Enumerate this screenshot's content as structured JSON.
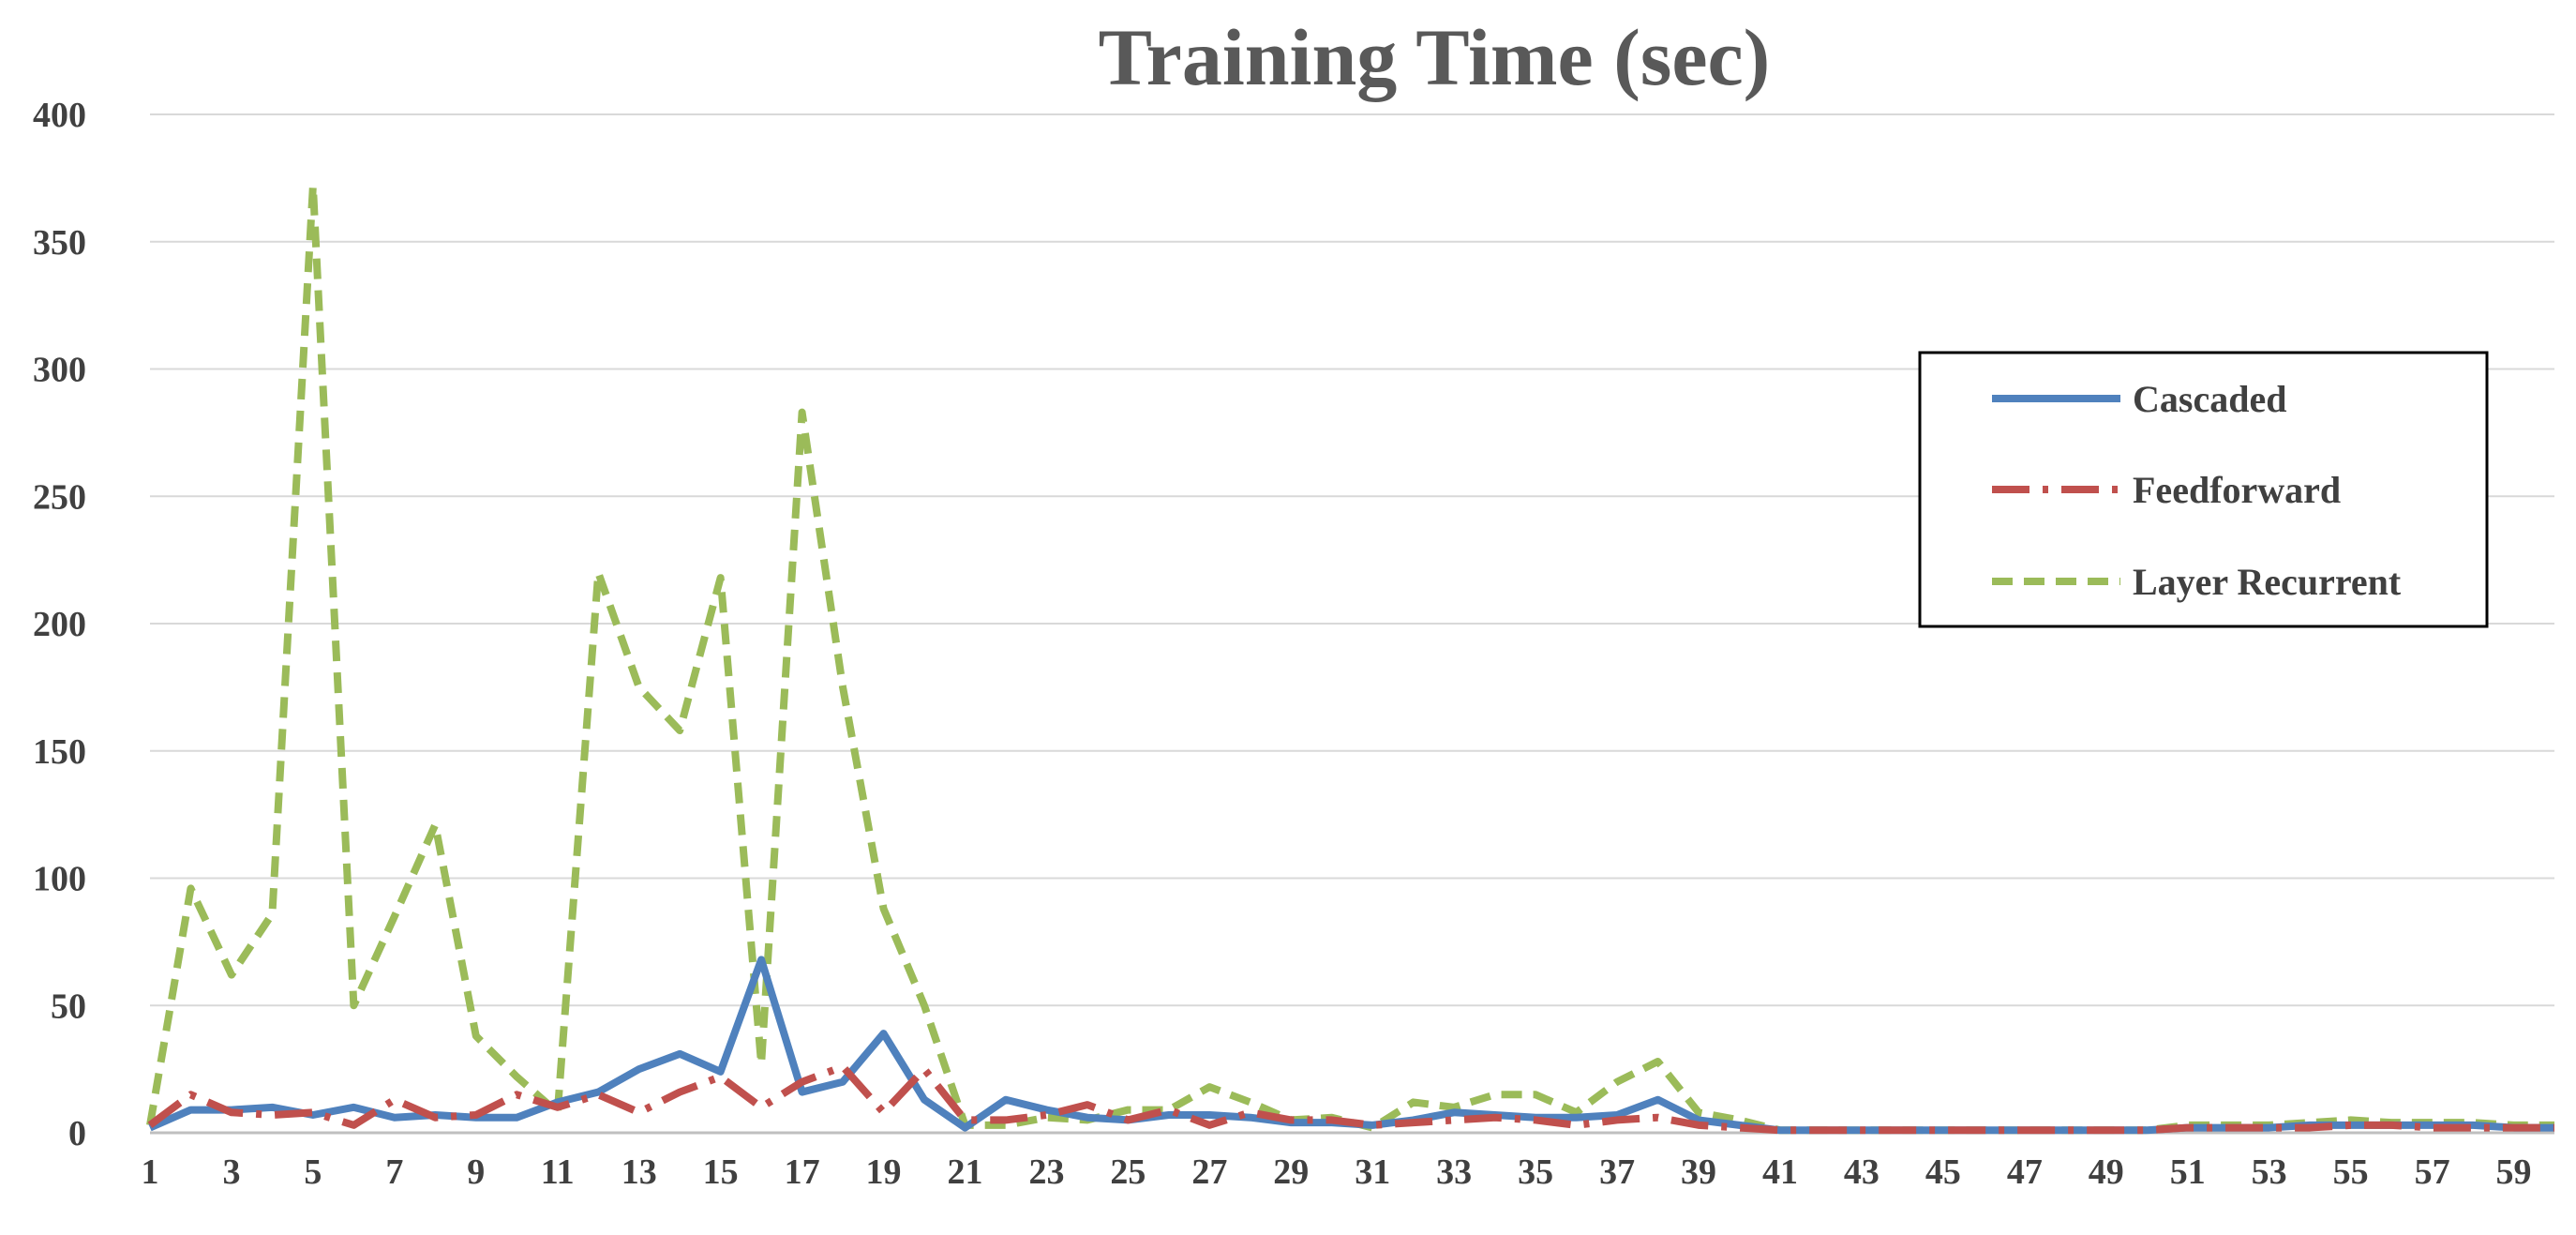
{
  "chart_data": {
    "type": "line",
    "title": "Training Time (sec)",
    "xlabel": "",
    "ylabel": "",
    "x": [
      1,
      2,
      3,
      4,
      5,
      6,
      7,
      8,
      9,
      10,
      11,
      12,
      13,
      14,
      15,
      16,
      17,
      18,
      19,
      20,
      21,
      22,
      23,
      24,
      25,
      26,
      27,
      28,
      29,
      30,
      31,
      32,
      33,
      34,
      35,
      36,
      37,
      38,
      39,
      40,
      41,
      42,
      43,
      44,
      45,
      46,
      47,
      48,
      49,
      50,
      51,
      52,
      53,
      54,
      55,
      56,
      57,
      58,
      59,
      60
    ],
    "x_tick_labels": [
      "1",
      "3",
      "5",
      "7",
      "9",
      "11",
      "13",
      "15",
      "17",
      "19",
      "21",
      "23",
      "25",
      "27",
      "29",
      "31",
      "33",
      "35",
      "37",
      "39",
      "41",
      "43",
      "45",
      "47",
      "49",
      "51",
      "53",
      "55",
      "57",
      "59"
    ],
    "ylim": [
      0,
      400
    ],
    "y_ticks": [
      0,
      50,
      100,
      150,
      200,
      250,
      300,
      350,
      400
    ],
    "grid": true,
    "legend_position": "right",
    "series": [
      {
        "name": "Cascaded",
        "color": "#4F81BD",
        "style": "solid",
        "values": [
          2,
          9,
          9,
          10,
          7,
          10,
          6,
          7,
          6,
          6,
          12,
          16,
          25,
          31,
          24,
          68,
          16,
          20,
          39,
          13,
          2,
          13,
          9,
          6,
          5,
          7,
          7,
          6,
          4,
          4,
          3,
          5,
          8,
          7,
          6,
          6,
          7,
          13,
          5,
          3,
          1,
          1,
          1,
          1,
          1,
          1,
          1,
          1,
          1,
          1,
          2,
          2,
          2,
          3,
          3,
          3,
          3,
          3,
          2,
          2
        ]
      },
      {
        "name": "Feedforward",
        "color": "#C0504D",
        "style": "dashdot",
        "values": [
          3,
          15,
          8,
          7,
          8,
          3,
          13,
          6,
          7,
          15,
          10,
          15,
          8,
          16,
          22,
          10,
          20,
          26,
          8,
          25,
          5,
          5,
          7,
          11,
          5,
          9,
          3,
          8,
          5,
          5,
          3,
          4,
          5,
          6,
          5,
          3,
          5,
          6,
          3,
          2,
          1,
          1,
          1,
          1,
          1,
          1,
          1,
          1,
          1,
          1,
          2,
          2,
          2,
          2,
          3,
          3,
          2,
          2,
          2,
          2
        ]
      },
      {
        "name": "Layer Recurrent",
        "color": "#9BBB59",
        "style": "dashed",
        "values": [
          3,
          96,
          62,
          86,
          372,
          50,
          85,
          121,
          38,
          22,
          8,
          220,
          175,
          158,
          218,
          27,
          283,
          175,
          88,
          50,
          3,
          3,
          6,
          5,
          9,
          9,
          18,
          12,
          5,
          6,
          2,
          12,
          10,
          15,
          15,
          8,
          20,
          28,
          8,
          5,
          1,
          1,
          1,
          1,
          1,
          1,
          1,
          1,
          1,
          1,
          3,
          3,
          3,
          4,
          5,
          4,
          4,
          4,
          3,
          3
        ]
      }
    ]
  }
}
